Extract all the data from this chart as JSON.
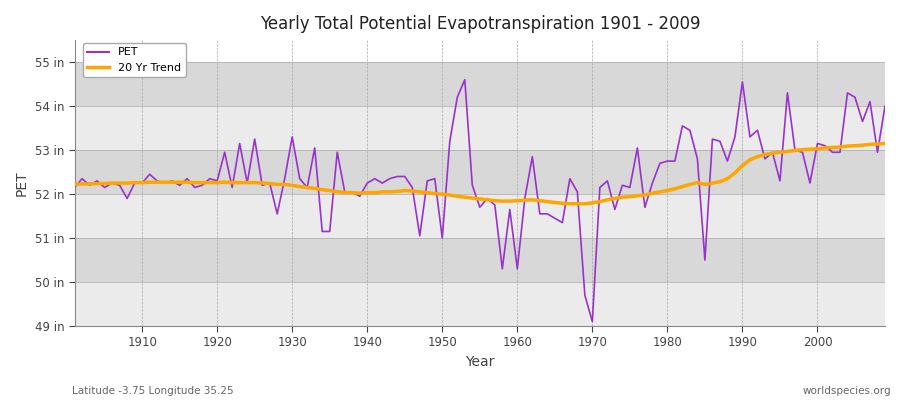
{
  "title": "Yearly Total Potential Evapotranspiration 1901 - 2009",
  "xlabel": "Year",
  "ylabel": "PET",
  "subtitle_left": "Latitude -3.75 Longitude 35.25",
  "subtitle_right": "worldspecies.org",
  "ylim": [
    49,
    55.5
  ],
  "yticks": [
    49,
    50,
    51,
    52,
    53,
    54,
    55
  ],
  "ytick_labels": [
    "49 in",
    "50 in",
    "51 in",
    "52 in",
    "53 in",
    "54 in",
    "55 in"
  ],
  "xlim": [
    1901,
    2009
  ],
  "xticks": [
    1910,
    1920,
    1930,
    1940,
    1950,
    1960,
    1970,
    1980,
    1990,
    2000
  ],
  "pet_color": "#9932CC",
  "trend_color": "#FFA500",
  "bg_color": "#ffffff",
  "band_color_light": "#ebebeb",
  "band_color_dark": "#d8d8d8",
  "years": [
    1901,
    1902,
    1903,
    1904,
    1905,
    1906,
    1907,
    1908,
    1909,
    1910,
    1911,
    1912,
    1913,
    1914,
    1915,
    1916,
    1917,
    1918,
    1919,
    1920,
    1921,
    1922,
    1923,
    1924,
    1925,
    1926,
    1927,
    1928,
    1929,
    1930,
    1931,
    1932,
    1933,
    1934,
    1935,
    1936,
    1937,
    1938,
    1939,
    1940,
    1941,
    1942,
    1943,
    1944,
    1945,
    1946,
    1947,
    1948,
    1949,
    1950,
    1951,
    1952,
    1953,
    1954,
    1955,
    1956,
    1957,
    1958,
    1959,
    1960,
    1961,
    1962,
    1963,
    1964,
    1965,
    1966,
    1967,
    1968,
    1969,
    1970,
    1971,
    1972,
    1973,
    1974,
    1975,
    1976,
    1977,
    1978,
    1979,
    1980,
    1981,
    1982,
    1983,
    1984,
    1985,
    1986,
    1987,
    1988,
    1989,
    1990,
    1991,
    1992,
    1993,
    1994,
    1995,
    1996,
    1997,
    1998,
    1999,
    2000,
    2001,
    2002,
    2003,
    2004,
    2005,
    2006,
    2007,
    2008,
    2009
  ],
  "pet_values": [
    52.15,
    52.35,
    52.2,
    52.3,
    52.15,
    52.25,
    52.2,
    51.9,
    52.25,
    52.25,
    52.45,
    52.3,
    52.25,
    52.3,
    52.2,
    52.35,
    52.15,
    52.2,
    52.35,
    52.3,
    52.95,
    52.15,
    53.15,
    52.25,
    53.25,
    52.2,
    52.25,
    51.55,
    52.35,
    53.3,
    52.35,
    52.15,
    53.05,
    51.15,
    51.15,
    52.95,
    52.05,
    52.05,
    51.95,
    52.25,
    52.35,
    52.25,
    52.35,
    52.4,
    52.4,
    52.15,
    51.05,
    52.3,
    52.35,
    51.0,
    53.2,
    54.2,
    54.6,
    52.2,
    51.7,
    51.9,
    51.75,
    50.3,
    51.65,
    50.3,
    51.9,
    52.85,
    51.55,
    51.55,
    51.45,
    51.35,
    52.35,
    52.05,
    49.7,
    49.1,
    52.15,
    52.3,
    51.65,
    52.2,
    52.15,
    53.05,
    51.7,
    52.25,
    52.7,
    52.75,
    52.75,
    53.55,
    53.45,
    52.8,
    50.5,
    53.25,
    53.2,
    52.75,
    53.3,
    54.55,
    53.3,
    53.45,
    52.8,
    52.95,
    52.3,
    54.3,
    53.0,
    52.95,
    52.25,
    53.15,
    53.1,
    52.95,
    52.95,
    54.3,
    54.2,
    53.65,
    54.1,
    52.95,
    54.0
  ],
  "trend_values": [
    52.22,
    52.23,
    52.23,
    52.24,
    52.24,
    52.25,
    52.25,
    52.25,
    52.26,
    52.26,
    52.27,
    52.27,
    52.27,
    52.27,
    52.27,
    52.27,
    52.26,
    52.26,
    52.26,
    52.26,
    52.27,
    52.26,
    52.26,
    52.26,
    52.26,
    52.25,
    52.24,
    52.22,
    52.22,
    52.2,
    52.17,
    52.15,
    52.13,
    52.1,
    52.08,
    52.05,
    52.04,
    52.03,
    52.02,
    52.03,
    52.03,
    52.05,
    52.05,
    52.06,
    52.08,
    52.07,
    52.05,
    52.03,
    52.01,
    52.0,
    51.98,
    51.95,
    51.93,
    51.91,
    51.89,
    51.87,
    51.85,
    51.84,
    51.84,
    51.85,
    51.86,
    51.87,
    51.85,
    51.83,
    51.81,
    51.79,
    51.78,
    51.78,
    51.78,
    51.8,
    51.83,
    51.87,
    51.9,
    51.93,
    51.94,
    51.96,
    51.98,
    52.02,
    52.05,
    52.08,
    52.12,
    52.17,
    52.22,
    52.26,
    52.22,
    52.25,
    52.28,
    52.35,
    52.48,
    52.65,
    52.78,
    52.85,
    52.9,
    52.93,
    52.95,
    52.97,
    52.99,
    53.01,
    53.02,
    53.03,
    53.05,
    53.06,
    53.07,
    53.09,
    53.1,
    53.11,
    53.13,
    53.14,
    53.15
  ]
}
